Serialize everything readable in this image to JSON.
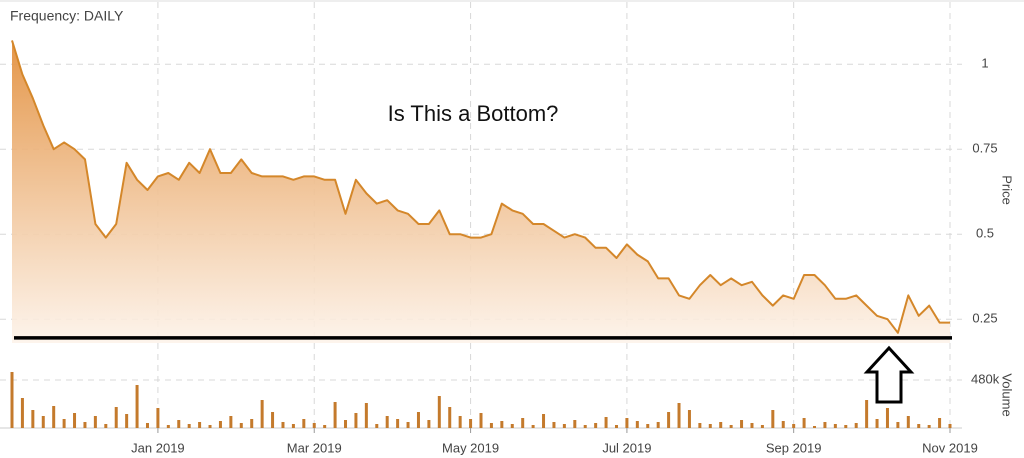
{
  "chart_data": {
    "type": "line",
    "title": "Is This a Bottom?",
    "subtitle": "Frequency: DAILY",
    "ylabel": "Price",
    "categories": [
      null,
      null,
      null,
      null,
      null,
      null,
      null,
      null,
      null,
      null,
      null,
      null,
      null,
      null,
      "Jan 2019",
      null,
      null,
      null,
      null,
      null,
      null,
      null,
      null,
      null,
      null,
      null,
      null,
      null,
      null,
      "Mar 2019",
      null,
      null,
      null,
      null,
      null,
      null,
      null,
      null,
      null,
      null,
      null,
      null,
      null,
      null,
      "May 2019",
      null,
      null,
      null,
      null,
      null,
      null,
      null,
      null,
      null,
      null,
      null,
      null,
      null,
      null,
      "Jul 2019",
      null,
      null,
      null,
      null,
      null,
      null,
      null,
      null,
      null,
      null,
      null,
      null,
      null,
      null,
      null,
      "Sep 2019",
      null,
      null,
      null,
      null,
      null,
      null,
      null,
      null,
      null,
      null,
      null,
      null,
      null,
      null,
      "Nov 2019"
    ],
    "series": [
      {
        "color": "#d4872a",
        "values": [
          1.07,
          0.97,
          0.9,
          0.82,
          0.75,
          0.77,
          0.75,
          0.72,
          0.53,
          0.49,
          0.53,
          0.71,
          0.66,
          0.63,
          0.67,
          0.68,
          0.66,
          0.71,
          0.68,
          0.75,
          0.68,
          0.68,
          0.72,
          0.68,
          0.67,
          0.67,
          0.67,
          0.66,
          0.67,
          0.67,
          0.66,
          0.66,
          0.56,
          0.66,
          0.62,
          0.59,
          0.6,
          0.57,
          0.56,
          0.53,
          0.53,
          0.57,
          0.5,
          0.5,
          0.49,
          0.49,
          0.5,
          0.59,
          0.57,
          0.56,
          0.53,
          0.53,
          0.51,
          0.49,
          0.5,
          0.49,
          0.46,
          0.46,
          0.43,
          0.47,
          0.44,
          0.42,
          0.37,
          0.37,
          0.32,
          0.31,
          0.35,
          0.38,
          0.35,
          0.37,
          0.35,
          0.36,
          0.32,
          0.29,
          0.32,
          0.31,
          0.38,
          0.38,
          0.35,
          0.31,
          0.31,
          0.32,
          0.29,
          0.26,
          0.25,
          0.21,
          0.32,
          0.26,
          0.29,
          0.24,
          0.24
        ]
      }
    ],
    "ylim": [
      0.18,
      1.13
    ],
    "yticks": [
      0.25,
      0.5,
      0.75,
      1
    ],
    "grid": true,
    "hline": 0.195,
    "volume": {
      "ylabel": "Volume",
      "color": "#c47a2c",
      "ylim": [
        0,
        730000
      ],
      "yticks": [
        {
          "value": 480000,
          "label": "480k"
        }
      ],
      "values": [
        560000,
        300000,
        180000,
        120000,
        220000,
        90000,
        150000,
        60000,
        120000,
        40000,
        210000,
        140000,
        430000,
        50000,
        200000,
        30000,
        80000,
        40000,
        60000,
        30000,
        70000,
        120000,
        50000,
        90000,
        280000,
        160000,
        60000,
        40000,
        90000,
        50000,
        30000,
        260000,
        80000,
        150000,
        250000,
        40000,
        120000,
        90000,
        60000,
        160000,
        80000,
        320000,
        210000,
        120000,
        90000,
        150000,
        50000,
        70000,
        40000,
        100000,
        30000,
        140000,
        60000,
        40000,
        80000,
        30000,
        50000,
        110000,
        30000,
        100000,
        70000,
        40000,
        60000,
        160000,
        250000,
        180000,
        50000,
        40000,
        60000,
        30000,
        80000,
        50000,
        30000,
        180000,
        70000,
        40000,
        100000,
        20000,
        60000,
        40000,
        30000,
        50000,
        280000,
        90000,
        200000,
        60000,
        120000,
        40000,
        30000,
        100000,
        40000
      ]
    }
  }
}
